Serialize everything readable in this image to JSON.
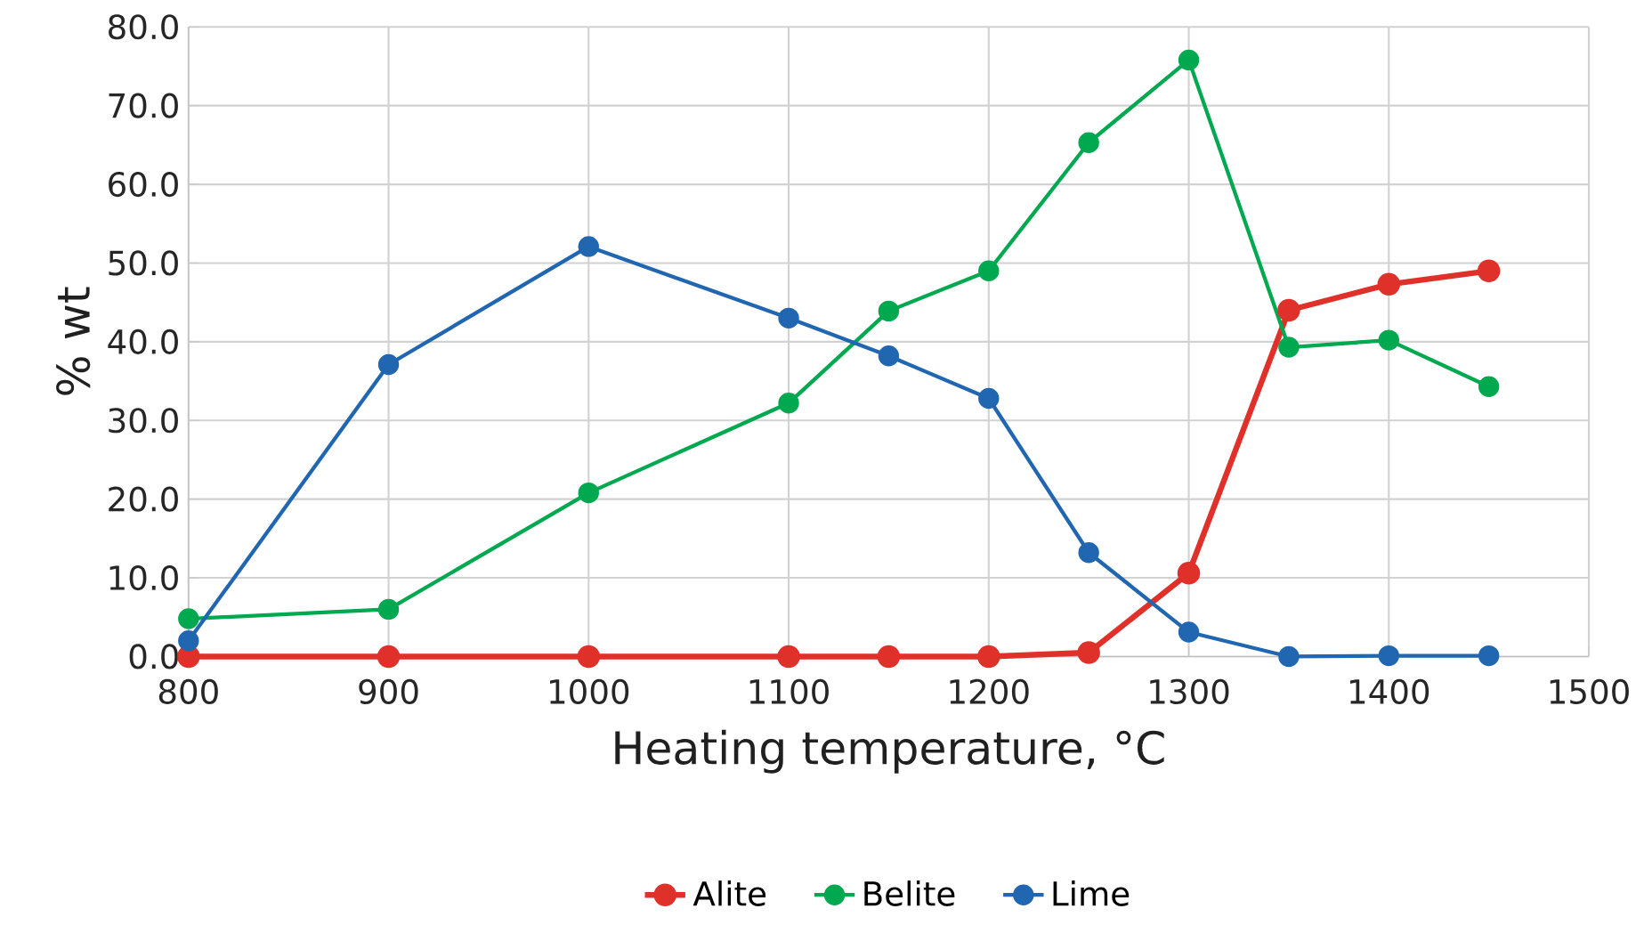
{
  "chart_data": {
    "type": "line",
    "xlabel": "Heating temperature, °C",
    "ylabel": "% wt",
    "x": [
      800,
      900,
      1000,
      1100,
      1150,
      1200,
      1250,
      1300,
      1350,
      1400,
      1450
    ],
    "series": [
      {
        "name": "Alite",
        "color": "#e0302a",
        "values": [
          0,
          0,
          0,
          0,
          0,
          0,
          0.5,
          10.6,
          44.0,
          47.3,
          49.0
        ]
      },
      {
        "name": "Belite",
        "color": "#00a84f",
        "values": [
          4.8,
          6.0,
          20.8,
          32.2,
          43.9,
          49.0,
          65.3,
          75.8,
          39.3,
          40.2,
          34.3
        ]
      },
      {
        "name": "Lime",
        "color": "#2166b0",
        "values": [
          2.0,
          37.1,
          52.1,
          43.0,
          38.2,
          32.8,
          13.2,
          3.1,
          0,
          0.1,
          0.1
        ]
      }
    ],
    "xlim": [
      800,
      1500
    ],
    "xticks": [
      800,
      900,
      1000,
      1100,
      1200,
      1300,
      1400,
      1500
    ],
    "ylim": [
      0,
      80
    ],
    "yticks": [
      {
        "value": 0,
        "label": "0.0"
      },
      {
        "value": 10,
        "label": "10.0"
      },
      {
        "value": 20,
        "label": "20.0"
      },
      {
        "value": 30,
        "label": "30.0"
      },
      {
        "value": 40,
        "label": "40.0"
      },
      {
        "value": 50,
        "label": "50.0"
      },
      {
        "value": 60,
        "label": "60.0"
      },
      {
        "value": 70,
        "label": "70.0"
      },
      {
        "value": 80,
        "label": "80.0"
      }
    ],
    "grid": true,
    "legend": "bottom",
    "marker": "circle",
    "line_style": "solid"
  }
}
